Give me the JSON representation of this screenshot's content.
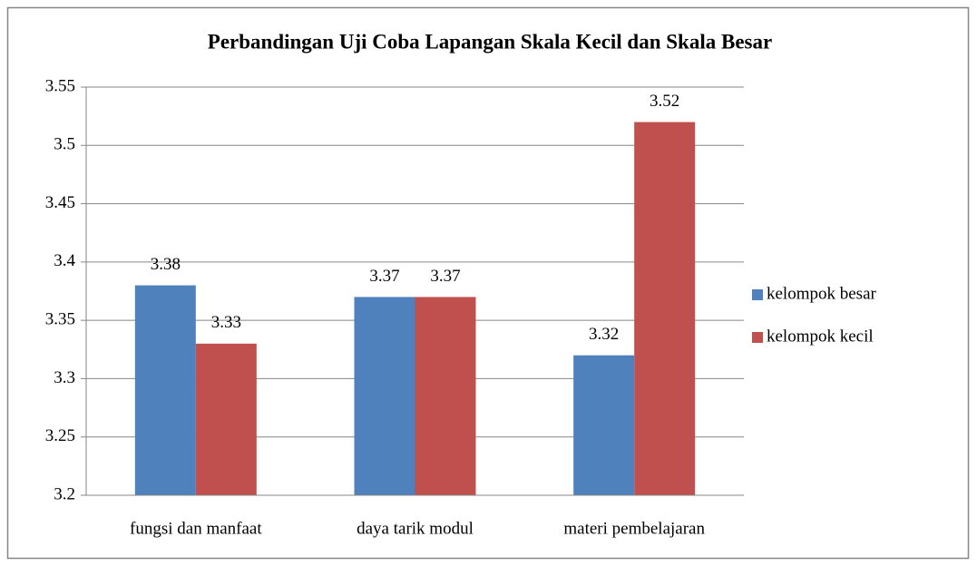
{
  "chart_data": {
    "type": "bar",
    "title": "Perbandingan Uji Coba Lapangan Skala Kecil dan Skala Besar",
    "categories": [
      "fungsi dan manfaat",
      "daya tarik modul",
      "materi pembelajaran"
    ],
    "series": [
      {
        "name": "kelompok besar",
        "color": "#4f81bd",
        "values": [
          3.38,
          3.37,
          3.32
        ]
      },
      {
        "name": "kelompok kecil",
        "color": "#c0504d",
        "values": [
          3.33,
          3.37,
          3.52
        ]
      }
    ],
    "ylim": [
      3.2,
      3.55
    ],
    "yticks": [
      3.2,
      3.25,
      3.3,
      3.35,
      3.4,
      3.45,
      3.5,
      3.55
    ],
    "grid": true,
    "legend": "right"
  }
}
